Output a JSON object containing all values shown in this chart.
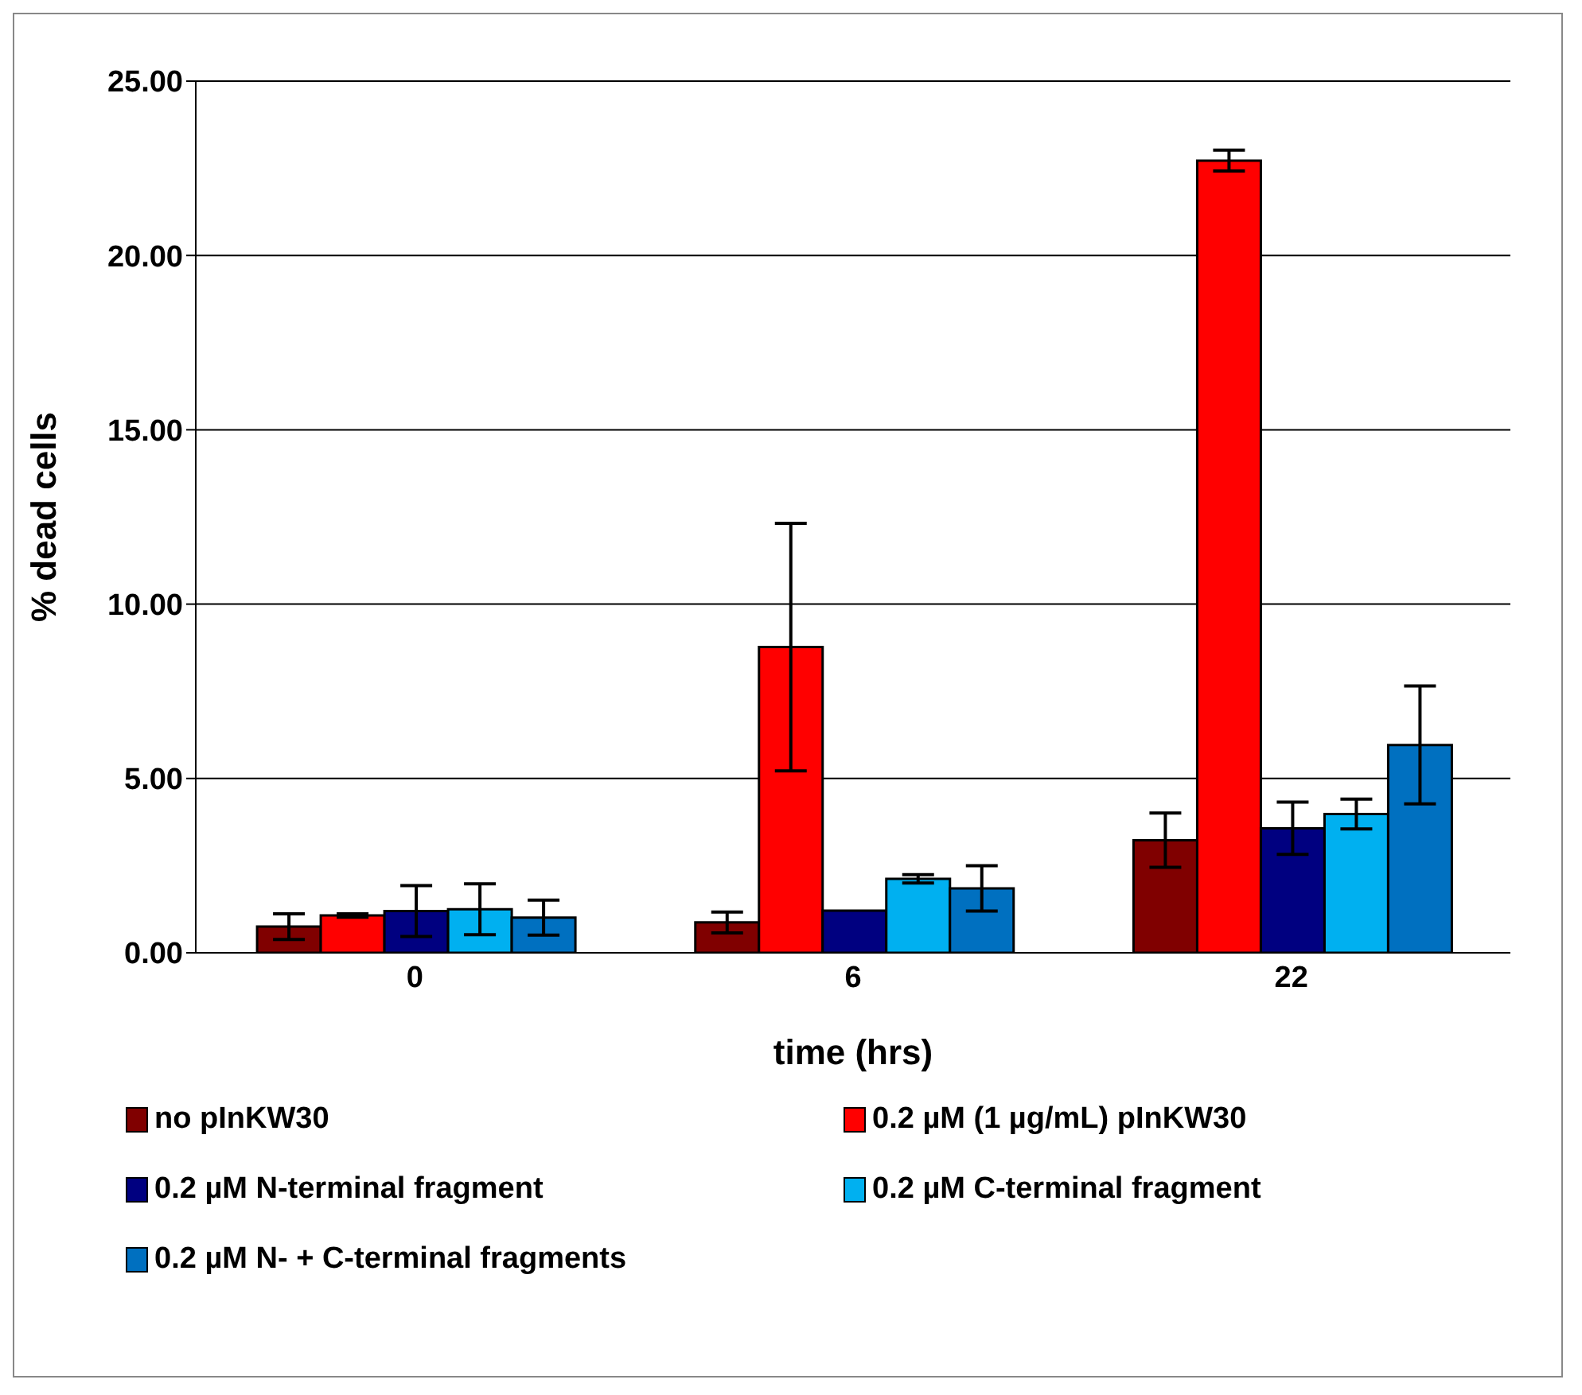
{
  "chart_data": {
    "type": "bar",
    "xlabel": "time (hrs)",
    "ylabel": "% dead cells",
    "categories": [
      "0",
      "6",
      "22"
    ],
    "series": [
      {
        "name": "no pInKW30",
        "color": "#800000",
        "values": [
          0.75,
          0.87,
          3.23
        ],
        "errors": [
          0.37,
          0.3,
          0.78
        ]
      },
      {
        "name": "0.2 µM (1 µg/mL) pInKW30",
        "color": "#ff0000",
        "values": [
          1.07,
          8.77,
          22.72
        ],
        "errors": [
          0.05,
          3.55,
          0.3
        ]
      },
      {
        "name": "0.2 µM N-terminal fragment",
        "color": "#000080",
        "values": [
          1.2,
          1.21,
          3.57
        ],
        "errors": [
          0.73,
          null,
          0.75
        ]
      },
      {
        "name": "0.2 µM C-terminal fragment",
        "color": "#00b0f0",
        "values": [
          1.25,
          2.12,
          3.98
        ],
        "errors": [
          0.73,
          0.12,
          0.43
        ]
      },
      {
        "name": "0.2 µM N- + C-terminal fragments",
        "color": "#0070c0",
        "values": [
          1.01,
          1.85,
          5.96
        ],
        "errors": [
          0.5,
          0.65,
          1.69
        ]
      }
    ],
    "ylim": [
      0,
      25
    ],
    "yticks": [
      {
        "value": 0,
        "label": "0.00"
      },
      {
        "value": 5,
        "label": "5.00"
      },
      {
        "value": 10,
        "label": "10.00"
      },
      {
        "value": 15,
        "label": "15.00"
      },
      {
        "value": 20,
        "label": "20.00"
      },
      {
        "value": 25,
        "label": "25.00"
      }
    ],
    "grid": "y",
    "legend": "bottom"
  }
}
